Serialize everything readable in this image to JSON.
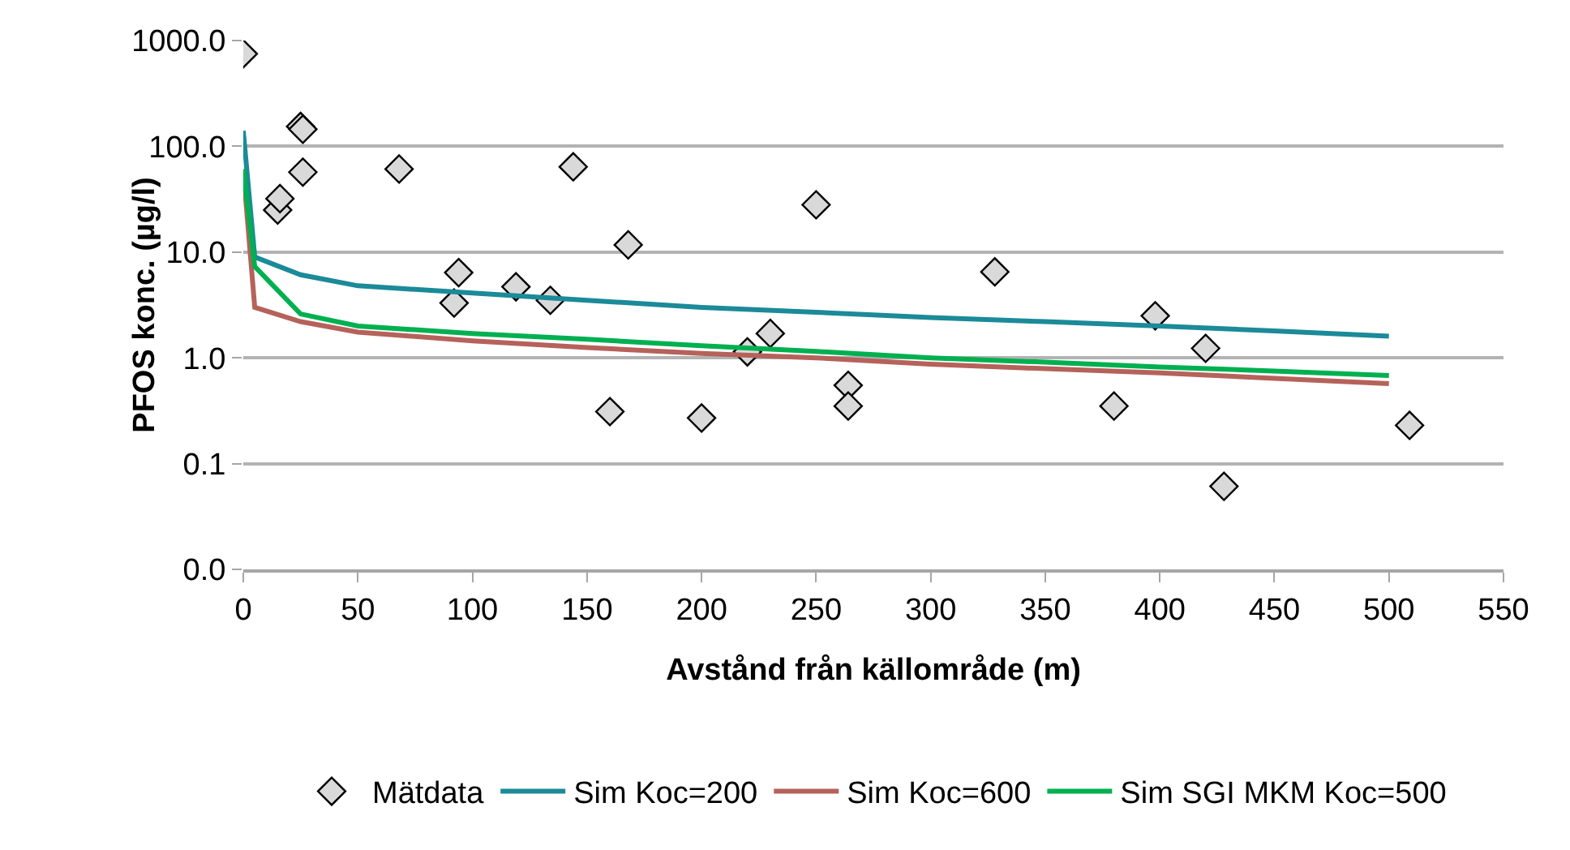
{
  "chart_data": {
    "type": "scatter",
    "xlabel": "Avstånd från källområde (m)",
    "ylabel": "PFOS konc. (µg/l)",
    "log": "y",
    "grid": "y",
    "legend": "bottom",
    "xlim": [
      0,
      550
    ],
    "xticks": [
      0,
      50,
      100,
      150,
      200,
      250,
      300,
      350,
      400,
      450,
      500,
      550
    ],
    "ylim": [
      0.01,
      1000
    ],
    "yticks": [
      {
        "value": 0.01,
        "label": "0.0"
      },
      0.1,
      {
        "value": 1,
        "label": "1.0"
      },
      {
        "value": 10,
        "label": "10.0"
      },
      {
        "value": 100,
        "label": "100.0"
      },
      {
        "value": 1000,
        "label": "1000.0"
      }
    ],
    "series": [
      {
        "name": "Mätdata",
        "marker": "diamond",
        "color": "#d9d9d9",
        "x": [
          0,
          15,
          16,
          25,
          26,
          26,
          68,
          94,
          92,
          119,
          134,
          144,
          160,
          168,
          200,
          220,
          230,
          250,
          264,
          264,
          328,
          380,
          398,
          420,
          428,
          509
        ],
        "values": [
          750,
          25,
          32,
          154,
          145,
          57,
          61,
          6.4,
          3.3,
          4.7,
          3.5,
          64,
          0.31,
          11.7,
          0.27,
          1.14,
          1.7,
          28,
          0.55,
          0.35,
          6.5,
          0.35,
          2.5,
          1.23,
          0.061,
          0.23
        ]
      },
      {
        "name": "Sim Koc=200",
        "type": "line",
        "marker": "none",
        "color": "#1b8a99",
        "x": [
          0,
          5,
          25,
          50,
          100,
          150,
          200,
          250,
          300,
          350,
          400,
          450,
          500
        ],
        "values": [
          140,
          9,
          6.1,
          4.8,
          4.1,
          3.5,
          3.0,
          2.7,
          2.4,
          2.2,
          2.0,
          1.8,
          1.6
        ]
      },
      {
        "name": "Sim Koc=600",
        "type": "line",
        "marker": "none",
        "color": "#b5625b",
        "x": [
          0,
          5,
          25,
          50,
          100,
          150,
          200,
          250,
          300,
          350,
          400,
          450,
          500
        ],
        "values": [
          60,
          3.0,
          2.2,
          1.75,
          1.45,
          1.25,
          1.1,
          1.0,
          0.87,
          0.79,
          0.72,
          0.64,
          0.57
        ]
      },
      {
        "name": "Sim SGI MKM Koc=500",
        "type": "line",
        "marker": "none",
        "color": "#00b050",
        "x": [
          0,
          5,
          25,
          50,
          100,
          150,
          200,
          250,
          300,
          350,
          400,
          450,
          500
        ],
        "values": [
          61,
          7.3,
          2.6,
          2.0,
          1.7,
          1.5,
          1.3,
          1.15,
          1.0,
          0.91,
          0.82,
          0.75,
          0.68
        ]
      }
    ]
  }
}
